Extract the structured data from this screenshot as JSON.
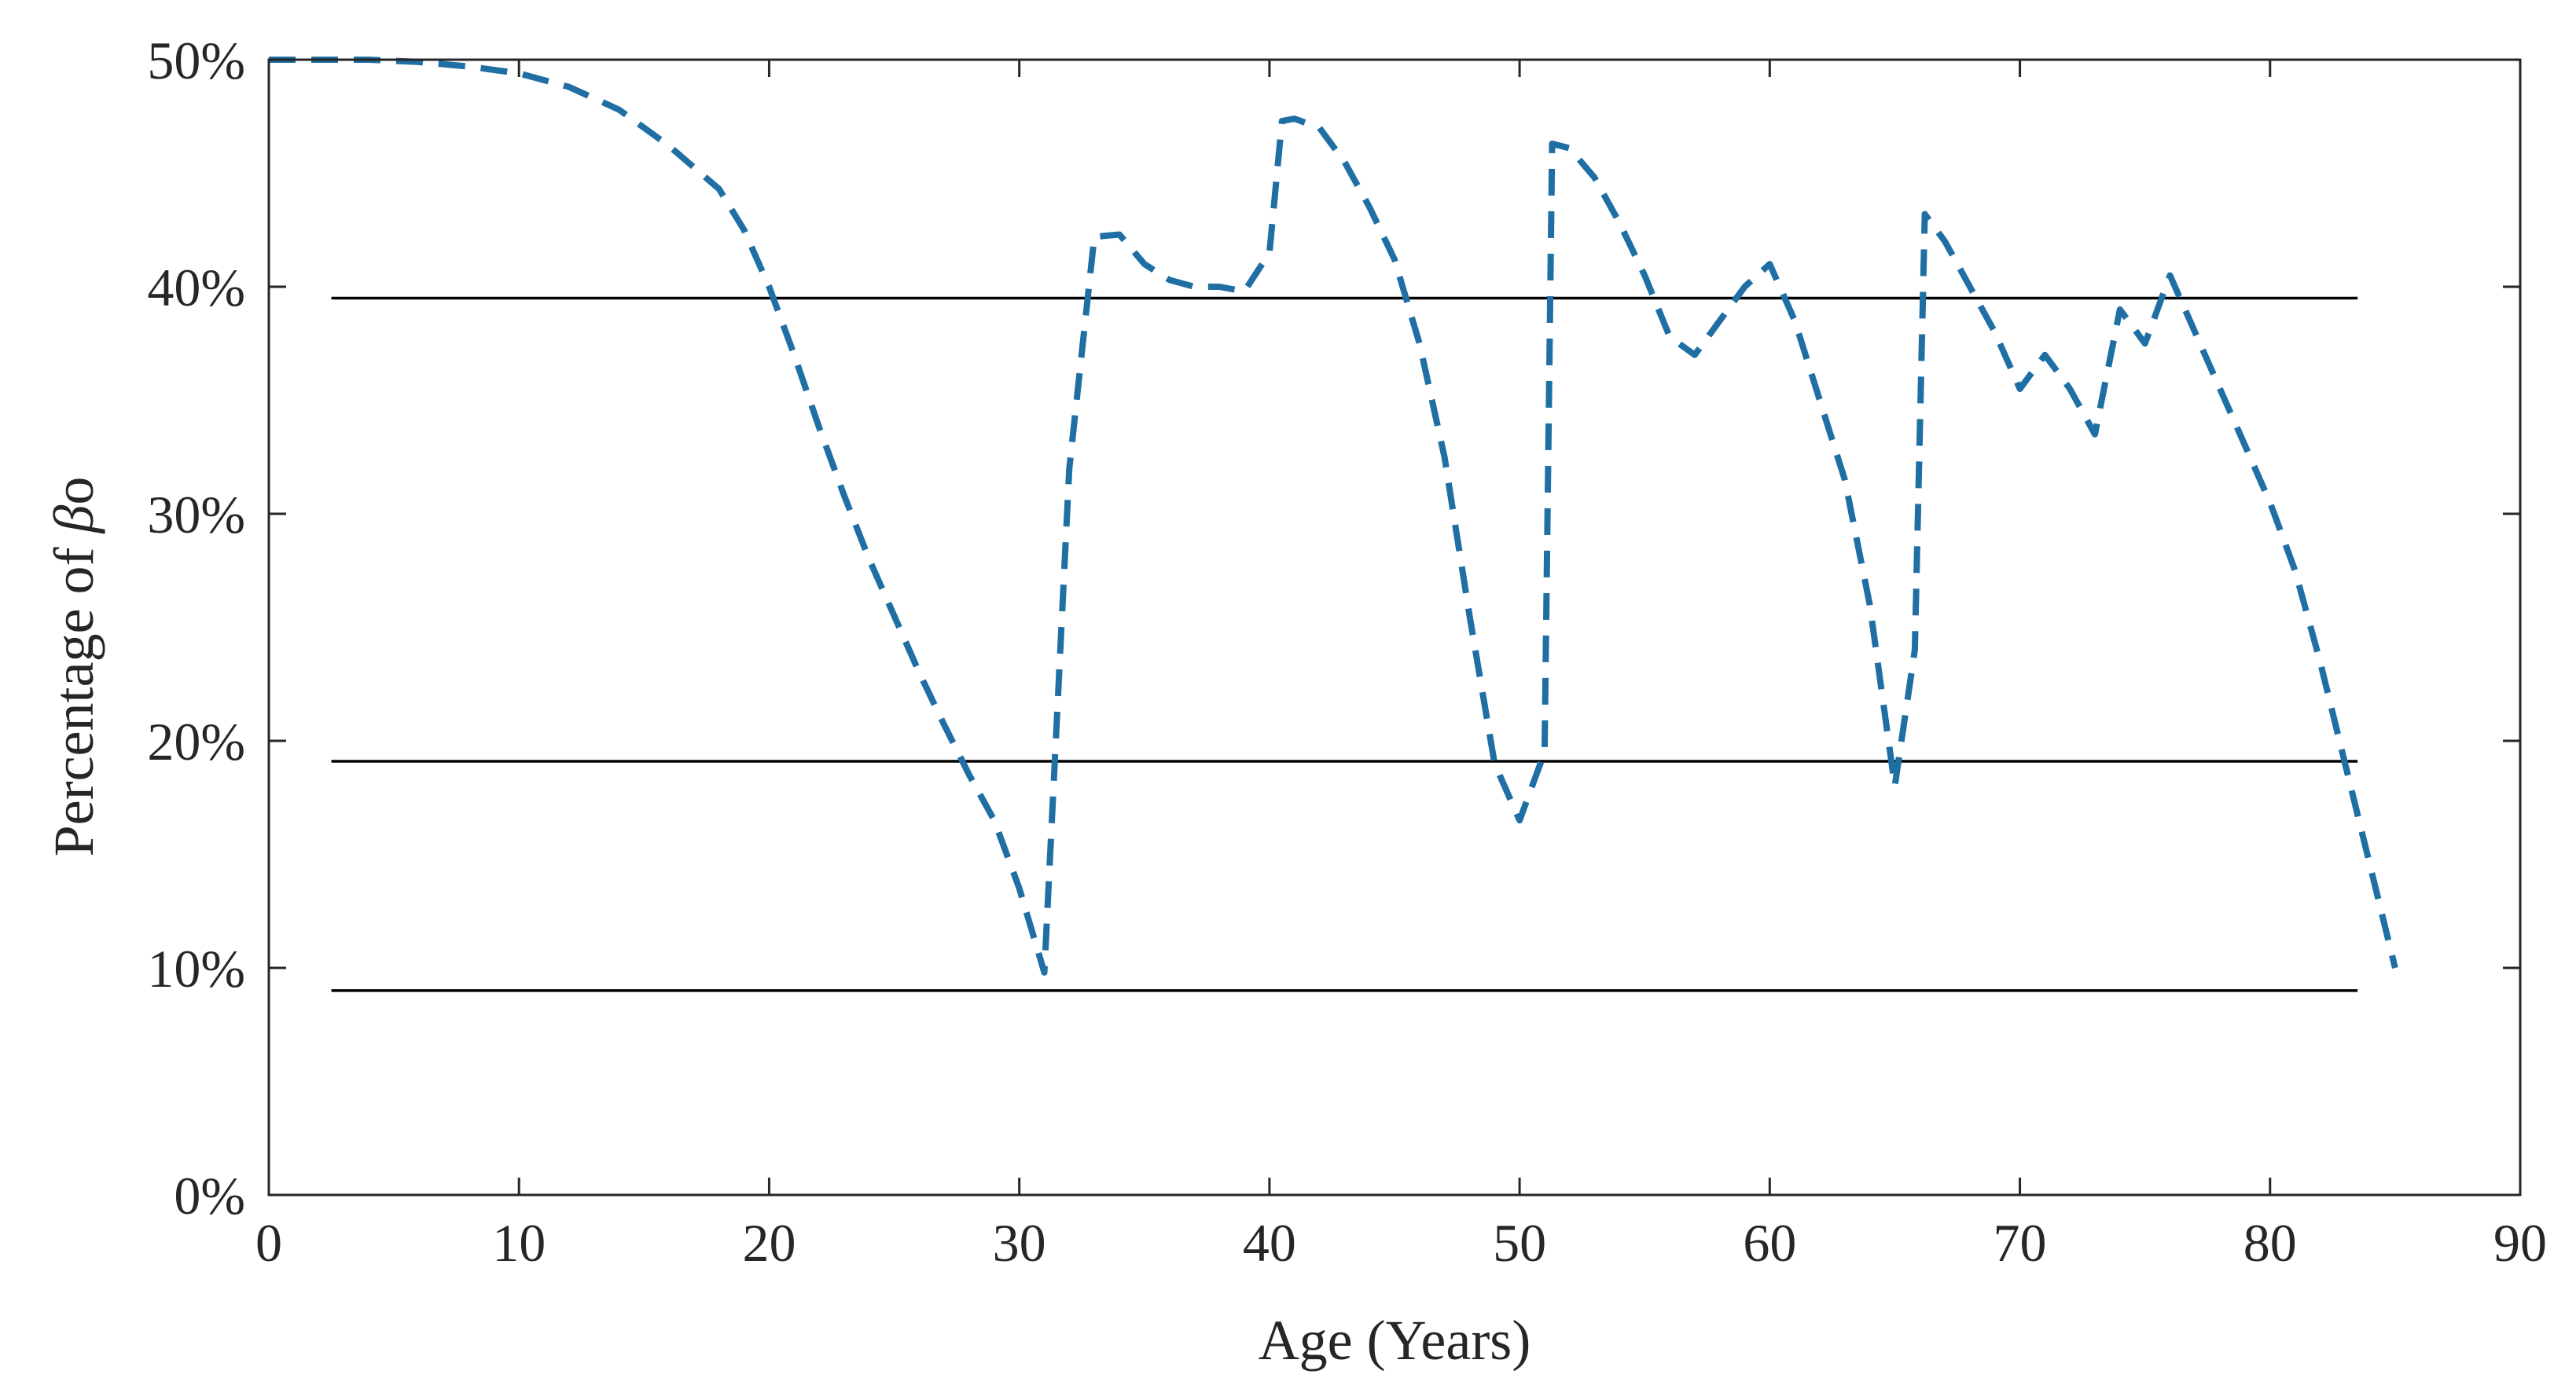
{
  "chart_data": {
    "type": "line",
    "title": "",
    "xlabel": "Age (Years)",
    "ylabel_prefix": "Percentage of ",
    "ylabel_symbol": "β",
    "ylabel_suffix": "o",
    "xlim": [
      0,
      90
    ],
    "ylim": [
      0,
      50
    ],
    "xticks": [
      0,
      10,
      20,
      30,
      40,
      50,
      60,
      70,
      80,
      90
    ],
    "yticks": [
      0,
      10,
      20,
      30,
      40,
      50
    ],
    "ytick_labels": [
      "0%",
      "10%",
      "20%",
      "30%",
      "40%",
      "50%"
    ],
    "xtick_labels": [
      "0",
      "10",
      "20",
      "30",
      "40",
      "50",
      "60",
      "70",
      "80",
      "90"
    ],
    "grid": false,
    "series": [
      {
        "name": "Percentage of βo",
        "color": "#1f6fa5",
        "style": "dashed",
        "x": [
          0,
          2,
          4,
          6,
          8,
          10,
          12,
          14,
          16,
          18,
          19,
          20,
          21,
          22,
          23,
          24,
          25,
          26,
          27,
          28,
          29,
          30,
          31,
          32,
          33,
          34,
          35,
          36,
          37,
          38,
          39,
          40,
          40.5,
          41,
          42,
          43,
          44,
          45,
          46,
          47,
          48,
          49,
          50,
          51,
          51.3,
          52,
          53,
          54,
          55,
          56,
          57,
          58,
          59,
          60,
          61,
          62,
          63,
          64,
          65,
          65.8,
          66.2,
          67,
          68,
          69,
          70,
          71,
          72,
          73,
          74,
          75,
          76,
          77,
          78,
          79,
          80,
          81,
          82,
          83,
          84,
          85
        ],
        "values": [
          50,
          50,
          50,
          49.9,
          49.7,
          49.4,
          48.8,
          47.8,
          46.2,
          44.3,
          42.5,
          40,
          37,
          33.8,
          30.8,
          28,
          25.5,
          23,
          20.7,
          18.5,
          16.5,
          13.5,
          9.8,
          32,
          42.2,
          42.3,
          41,
          40.3,
          40,
          40,
          39.8,
          41.5,
          47.3,
          47.4,
          47,
          45.5,
          43.5,
          41.2,
          37.5,
          32.5,
          25.5,
          19,
          16.5,
          19.5,
          46.3,
          46.1,
          44.8,
          42.8,
          40.5,
          37.8,
          37,
          38.5,
          40,
          41,
          38.5,
          35,
          31.5,
          26,
          18,
          24,
          43.2,
          42,
          40,
          38,
          35.5,
          37,
          35.5,
          33.5,
          39,
          37.5,
          40.5,
          38,
          35.5,
          33,
          30.5,
          27.5,
          23.5,
          19,
          14.5,
          10
        ]
      }
    ],
    "reference_lines": [
      {
        "y": 39.5,
        "x_start": 2.5,
        "x_end": 83.5,
        "color": "#000000"
      },
      {
        "y": 19.1,
        "x_start": 2.5,
        "x_end": 83.5,
        "color": "#000000"
      },
      {
        "y": 9.0,
        "x_start": 2.5,
        "x_end": 83.5,
        "color": "#000000"
      }
    ]
  }
}
